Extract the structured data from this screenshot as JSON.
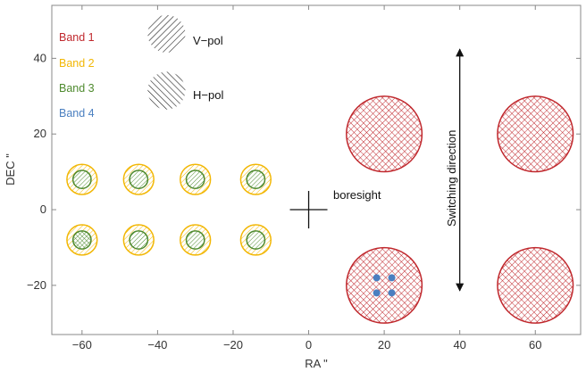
{
  "axes": {
    "xlabel": "RA \"",
    "ylabel": "DEC \"",
    "xlim": [
      -68,
      72
    ],
    "ylim": [
      -33,
      54
    ],
    "xticks": [
      -60,
      -40,
      -20,
      0,
      20,
      40,
      60
    ],
    "yticks": [
      -20,
      0,
      20,
      40
    ],
    "xtick_labels": [
      "−60",
      "−40",
      "−20",
      "0",
      "20",
      "40",
      "60"
    ],
    "ytick_labels": [
      "−20",
      "0",
      "20",
      "40"
    ]
  },
  "legend": {
    "bands": [
      {
        "label": "Band 1",
        "color": "#c0282d"
      },
      {
        "label": "Band 2",
        "color": "#f2b705"
      },
      {
        "label": "Band 3",
        "color": "#4e8a2e"
      },
      {
        "label": "Band 4",
        "color": "#4a7fc0"
      }
    ],
    "pol": [
      {
        "label": "V−pol",
        "hatch": "diag-right",
        "x": -40,
        "y": 46,
        "r": 5
      },
      {
        "label": "H−pol",
        "hatch": "diag-left",
        "x": -40,
        "y": 31,
        "r": 5
      }
    ]
  },
  "annotations": {
    "boresight": "boresight",
    "switching": "Switching direction"
  },
  "colors": {
    "band1": "#c0282d",
    "band2": "#f2b705",
    "band3": "#4e8a2e",
    "band4": "#4a7fc0",
    "frame": "#888888"
  },
  "chart_data": {
    "type": "scatter",
    "xlabel": "RA \"",
    "ylabel": "DEC \"",
    "xlim": [
      -68,
      72
    ],
    "ylim": [
      -33,
      54
    ],
    "boresight": [
      0,
      0
    ],
    "switching_direction": {
      "x": 40,
      "y_from": -20,
      "y_to": 41
    },
    "band1": {
      "name": "Band 1",
      "radius": 10,
      "pattern": "cross",
      "points": [
        [
          20,
          20
        ],
        [
          60,
          20
        ],
        [
          20,
          -20
        ],
        [
          60,
          -20
        ]
      ]
    },
    "band2": {
      "name": "Band 2",
      "radius": 4,
      "pattern": "diag",
      "points": [
        [
          -60,
          8
        ],
        [
          -45,
          8
        ],
        [
          -30,
          8
        ],
        [
          -14,
          8
        ],
        [
          -60,
          -8
        ],
        [
          -45,
          -8
        ],
        [
          -30,
          -8
        ],
        [
          -14,
          -8
        ]
      ]
    },
    "band3": {
      "name": "Band 3",
      "radius": 2.4,
      "pattern_by_pol": true,
      "points": [
        {
          "x": -60,
          "y": 8,
          "pol": "V"
        },
        {
          "x": -45,
          "y": 8,
          "pol": "V"
        },
        {
          "x": -30,
          "y": 8,
          "pol": "V"
        },
        {
          "x": -14,
          "y": 8,
          "pol": "V"
        },
        {
          "x": -60,
          "y": -8,
          "pol": "H"
        },
        {
          "x": -45,
          "y": -8,
          "pol": "V"
        },
        {
          "x": -30,
          "y": -8,
          "pol": "V"
        },
        {
          "x": -14,
          "y": -8,
          "pol": "V"
        }
      ]
    },
    "band4": {
      "name": "Band 4",
      "radius": 1,
      "pattern": "solid",
      "points": [
        [
          18,
          -18
        ],
        [
          22,
          -18
        ],
        [
          18,
          -22
        ],
        [
          22,
          -22
        ]
      ]
    }
  }
}
